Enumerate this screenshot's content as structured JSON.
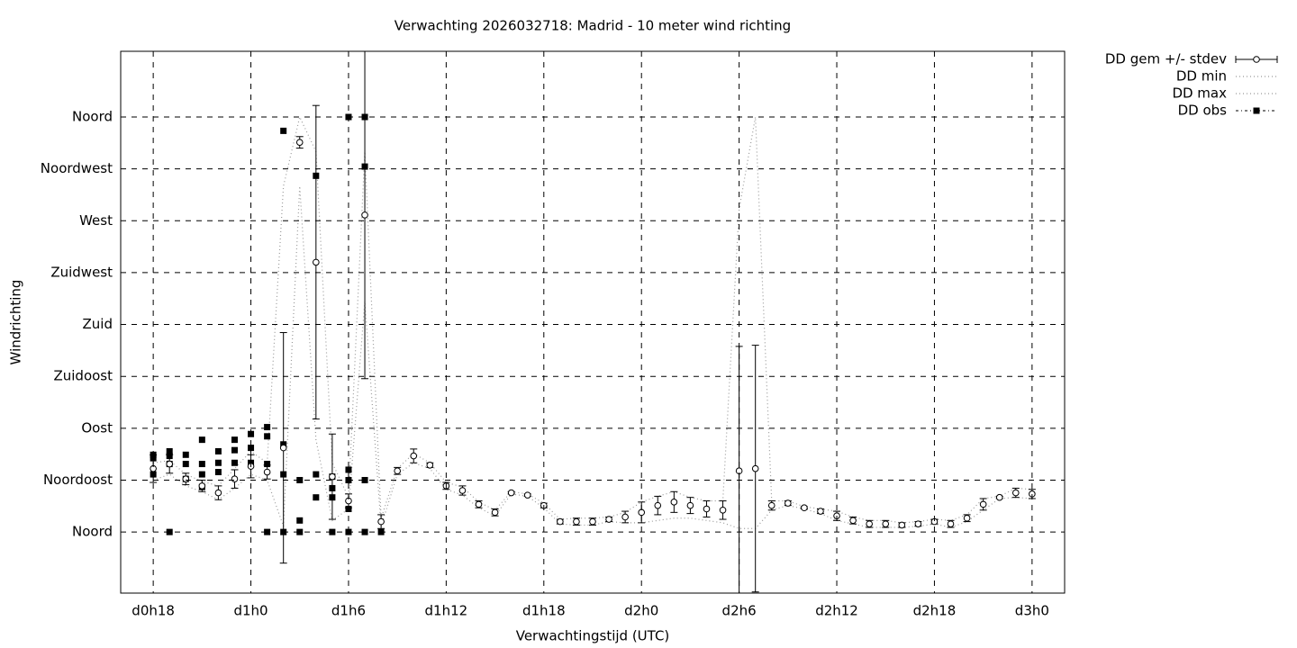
{
  "chart_data": {
    "type": "errorbar",
    "title": "Verwachting 2026032718: Madrid - 10 meter wind richting",
    "x_label": "Verwachtingstijd (UTC)",
    "y_label": "Windrichting",
    "xlim": [
      16,
      74
    ],
    "ylim": [
      -53,
      417
    ],
    "xticks": [
      {
        "value": 18,
        "label": "d0h18"
      },
      {
        "value": 24,
        "label": "d1h0"
      },
      {
        "value": 30,
        "label": "d1h6"
      },
      {
        "value": 36,
        "label": "d1h12"
      },
      {
        "value": 42,
        "label": "d1h18"
      },
      {
        "value": 48,
        "label": "d2h0"
      },
      {
        "value": 54,
        "label": "d2h6"
      },
      {
        "value": 60,
        "label": "d2h12"
      },
      {
        "value": 66,
        "label": "d2h18"
      },
      {
        "value": 72,
        "label": "d3h0"
      }
    ],
    "yticks": [
      {
        "value": 0,
        "label": "Noord"
      },
      {
        "value": 45,
        "label": "Noordoost"
      },
      {
        "value": 90,
        "label": "Oost"
      },
      {
        "value": 135,
        "label": "Zuidoost"
      },
      {
        "value": 180,
        "label": "Zuid"
      },
      {
        "value": 225,
        "label": "Zuidwest"
      },
      {
        "value": 270,
        "label": "West"
      },
      {
        "value": 315,
        "label": "Noordwest"
      },
      {
        "value": 360,
        "label": "Noord"
      }
    ],
    "grid": true,
    "legend": "outside-top-right",
    "x": [
      18,
      19,
      20,
      21,
      22,
      23,
      24,
      25,
      26,
      27,
      28,
      29,
      30,
      31,
      32,
      33,
      34,
      35,
      36,
      37,
      38,
      39,
      40,
      41,
      42,
      43,
      44,
      45,
      46,
      47,
      48,
      49,
      50,
      51,
      52,
      53,
      54,
      55,
      56,
      57,
      58,
      59,
      60,
      61,
      62,
      63,
      64,
      65,
      66,
      67,
      68,
      69,
      70,
      71,
      72
    ],
    "series": [
      {
        "name": "DD gem +/- stdev",
        "color": "#000000",
        "values": [
          55,
          59,
          46,
          40,
          34,
          46,
          57,
          52,
          73,
          338,
          234,
          48,
          27,
          275,
          9,
          53,
          66,
          58,
          40,
          36,
          24,
          17,
          34,
          32,
          23,
          9,
          9,
          9,
          11,
          13,
          17,
          23,
          26,
          23,
          20,
          19,
          53,
          55,
          23,
          25,
          21,
          18,
          14,
          10,
          7,
          7,
          6,
          7,
          9,
          7,
          12,
          24,
          30,
          34,
          33
        ],
        "errors": [
          12,
          8,
          5,
          5,
          6,
          8,
          10,
          6,
          100,
          5,
          136,
          37,
          6,
          142,
          6,
          3,
          6,
          2,
          3,
          4,
          3,
          3,
          1,
          1,
          2,
          2,
          3,
          3,
          2,
          5,
          9,
          8,
          9,
          7,
          7,
          8,
          108,
          107,
          4,
          2,
          1,
          2,
          4,
          3,
          3,
          3,
          2,
          2,
          2,
          3,
          3,
          5,
          1,
          4,
          4
        ]
      },
      {
        "name": "DD min",
        "color": "#999999",
        "values": [
          45,
          50,
          40,
          35,
          28,
          38,
          50,
          45,
          5,
          300,
          80,
          10,
          20,
          200,
          5,
          50,
          60,
          55,
          37,
          32,
          21,
          14,
          33,
          31,
          21,
          7,
          6,
          6,
          9,
          8,
          8,
          10,
          12,
          12,
          10,
          8,
          3,
          3,
          19,
          23,
          20,
          16,
          10,
          7,
          4,
          4,
          4,
          5,
          7,
          4,
          9,
          19,
          29,
          30,
          29
        ]
      },
      {
        "name": "DD max",
        "color": "#999999",
        "values": [
          60,
          62,
          50,
          44,
          40,
          55,
          70,
          60,
          300,
          360,
          330,
          60,
          30,
          330,
          12,
          55,
          68,
          60,
          43,
          39,
          26,
          19,
          35,
          33,
          25,
          11,
          12,
          12,
          13,
          17,
          26,
          31,
          35,
          30,
          27,
          27,
          280,
          360,
          27,
          27,
          22,
          20,
          18,
          13,
          10,
          10,
          8,
          9,
          11,
          10,
          15,
          29,
          31,
          38,
          37
        ]
      },
      {
        "name": "DD obs",
        "color": "#000000",
        "x": [
          18,
          18,
          18,
          19,
          19,
          19,
          19,
          20,
          20,
          20,
          21,
          21,
          21,
          21,
          22,
          22,
          22,
          23,
          23,
          23,
          24,
          24,
          24,
          25,
          25,
          25,
          25,
          26,
          26,
          26,
          26,
          27,
          27,
          27,
          28,
          28,
          28,
          29,
          29,
          29,
          29,
          30,
          30,
          30,
          30,
          30,
          31,
          31,
          31,
          31,
          32
        ],
        "values": [
          67,
          64,
          50,
          70,
          66,
          59,
          0,
          67,
          59,
          46,
          80,
          59,
          50,
          39,
          70,
          60,
          52,
          80,
          71,
          60,
          85,
          73,
          60,
          91,
          83,
          59,
          0,
          348,
          76,
          50,
          0,
          45,
          10,
          0,
          309,
          50,
          30,
          48,
          38,
          30,
          0,
          360,
          54,
          45,
          20,
          0,
          360,
          317,
          45,
          0,
          0
        ]
      }
    ]
  }
}
